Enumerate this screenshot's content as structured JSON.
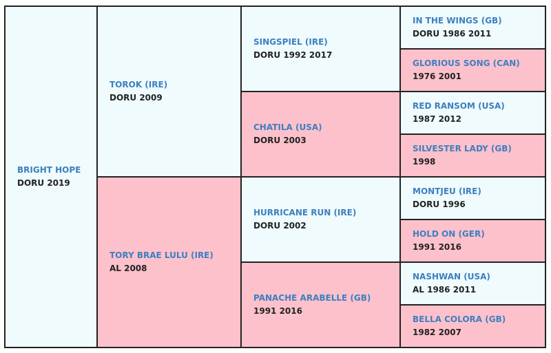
{
  "pedigree": [
    {
      "name": "BRIGHT HOPE",
      "info": "DORU 2019"
    },
    {
      "name": "TOROK (IRE)",
      "info": "DORU 2009"
    },
    {
      "name": "SINGSPIEL (IRE)",
      "info": "DORU 1992 2017"
    },
    {
      "name": "IN THE WINGS (GB)",
      "info": "DORU 1986 2011"
    },
    {
      "name": "GLORIOUS SONG (CAN)",
      "info": "1976 2001"
    },
    {
      "name": "CHATILA (USA)",
      "info": "DORU 2003"
    },
    {
      "name": "RED RANSOM (USA)",
      "info": "1987 2012"
    },
    {
      "name": "SILVESTER LADY (GB)",
      "info": "1998"
    },
    {
      "name": "TORY BRAE LULU (IRE)",
      "info": "AL 2008"
    },
    {
      "name": "HURRICANE RUN (IRE)",
      "info": "DORU 2002"
    },
    {
      "name": "MONTJEU (IRE)",
      "info": "DORU 1996"
    },
    {
      "name": "HOLD ON (GER)",
      "info": "1991 2016"
    },
    {
      "name": "PANACHE ARABELLE (GB)",
      "info": "1991 2016"
    },
    {
      "name": "NASHWAN (USA)",
      "info": "AL 1986 2011"
    },
    {
      "name": "BELLA COLORA (GB)",
      "info": "1982 2007"
    }
  ]
}
